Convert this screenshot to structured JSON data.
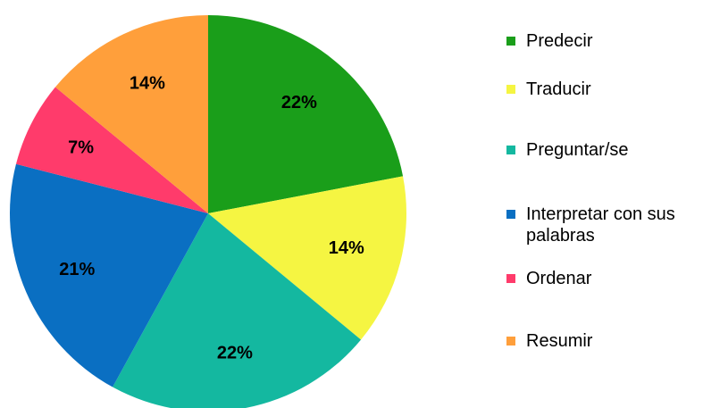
{
  "chart_data": {
    "type": "pie",
    "categories": [
      "Predecir",
      "Traducir",
      "Preguntar/se",
      "Interpretar con sus palabras",
      "Ordenar",
      "Resumir"
    ],
    "values": [
      22,
      14,
      22,
      21,
      7,
      14
    ],
    "value_labels": [
      "22%",
      "14%",
      "22%",
      "21%",
      "7%",
      "14%"
    ],
    "colors": [
      "#1a9e1a",
      "#f5f542",
      "#14b8a0",
      "#0a6fc2",
      "#ff3b6b",
      "#ff9f3b"
    ],
    "legend": "right"
  }
}
